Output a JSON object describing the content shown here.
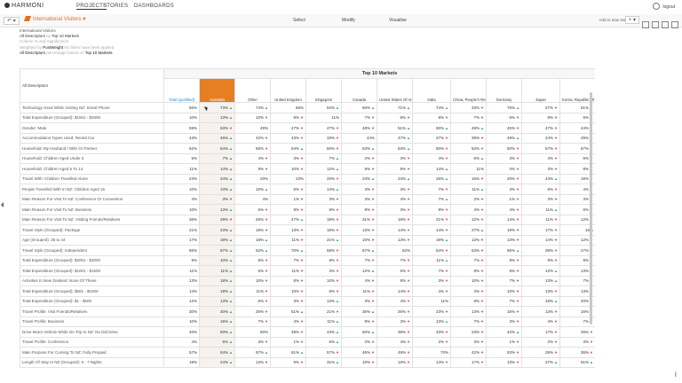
{
  "nav": {
    "logo": "HARMONI",
    "links": [
      "PROJECTS",
      "STORIES",
      "DASHBOARDS"
    ],
    "logout": "logout"
  },
  "toolbar": {
    "undo": "↶ ▾",
    "title": "International Visitors",
    "tabs": [
      "Select",
      "Modify",
      "Visualise"
    ],
    "add_to_story": "Add to new story",
    "plus": "+ ▾"
  },
  "info": {
    "line1": "International Visitors",
    "line2_a": "All Descriptors",
    "line2_by": "by",
    "line2_b": "Top 10 Markets",
    "line3": "Column % and Significance",
    "line4_a": "Weighted by",
    "line4_b": "PostWeight",
    "line4_c": "No filters have been applied",
    "line5_a": "All Descriptors",
    "line5_b": "percentage based on",
    "line5_c": "Top 10 Markets"
  },
  "table": {
    "group_header": "Top 10 Markets",
    "row_header": "All Descriptors",
    "columns": [
      "Total (qualified)",
      "Australia",
      "Other",
      "United Kingdom",
      "Singapore",
      "Canada",
      "United States Of America",
      "India",
      "China, People's Republic Of",
      "Germany",
      "Japan",
      "Korea, Republic Of"
    ],
    "rows": [
      {
        "label": "Technology Used While Visiting NZ: Smart Phone",
        "values": [
          "56%",
          "73% ▲",
          "74% ▲",
          "66%",
          "84% ▲",
          "66% ▲",
          "71% ▲",
          "74% ▲",
          "33% ▼",
          "76% ▲",
          "27% ▼",
          "51% ▼"
        ]
      },
      {
        "label": "Total Expenditure (Grouped): $1501 - $2000",
        "values": [
          "10%",
          "13% ▲",
          "10% ▼",
          "9% ▼",
          "11%",
          "7% ▼",
          "8% ▼",
          "8% ▼",
          "7% ▼",
          "6% ▼",
          "8% ▼",
          "6% ▼"
        ]
      },
      {
        "label": "Gender: Male",
        "values": [
          "59%",
          "53% ▼",
          "49%",
          "47% ▼",
          "47% ▼",
          "48% ▼",
          "51% ▲",
          "50% ▲",
          "48% ▲",
          "45% ▼",
          "47% ▼",
          "44% ▼"
        ]
      },
      {
        "label": "Accommodation Types Used: Rental Car",
        "values": [
          "43%",
          "46% ▲",
          "42% ▼",
          "43% ▼",
          "33% ▼",
          "44%",
          "47% ▲",
          "37% ▼",
          "39% ▼",
          "49% ▲",
          "24% ▼",
          "25% ▼"
        ]
      },
      {
        "label": "Household: My Husband / Wife Or Partner",
        "values": [
          "62%",
          "64% ▲",
          "56% ▼",
          "64% ▲",
          "60% ▼",
          "63% ▲",
          "63% ▲",
          "60% ▼",
          "52% ▼",
          "60% ▼",
          "57% ▼",
          "67% ▲"
        ]
      },
      {
        "label": "Household: Children Aged Under 5",
        "values": [
          "5%",
          "7% ▲",
          "4% ▼",
          "3% ▼",
          "7% ▲",
          "2% ▼",
          "3% ▼",
          "4% ▼",
          "6% ▲",
          "3% ▼",
          "4% ▼",
          "6% ▲"
        ]
      },
      {
        "label": "Household: Children Aged 5 To 14",
        "values": [
          "11%",
          "14% ▲",
          "8% ▼",
          "10% ▼",
          "12% ▲",
          "9% ▼",
          "8% ▼",
          "14% ▲",
          "11%",
          "4% ▼",
          "3% ▼",
          "8% ▼"
        ]
      },
      {
        "label": "Travel With: Children Travelled Alone",
        "values": [
          "23%",
          "34% ▲",
          "20%",
          "23%",
          "20% ▼",
          "23% ▲",
          "23% ▲",
          "26% ▲",
          "16% ▼",
          "20% ▼",
          "44% ▲",
          "16% ▼"
        ]
      },
      {
        "label": "People Travelled With In NZ: Children Aged 15",
        "values": [
          "10%",
          "13% ▲",
          "10% ▲",
          "6% ▼",
          "14% ▲",
          "3% ▼",
          "3% ▼",
          "7% ▼",
          "11% ▲",
          "3% ▼",
          "6% ▼",
          "4% ▼"
        ]
      },
      {
        "label": "Main Reason For Visit To NZ: Conference Or Convention",
        "values": [
          "4%",
          "3% ▼",
          "4%",
          "1% ▼",
          "3% ▼",
          "3% ▼",
          "4% ▼",
          "7% ▲",
          "2% ▼",
          "1% ▼",
          "3% ▼",
          "3% ▼"
        ]
      },
      {
        "label": "Main Reason For Visit To NZ: Business",
        "values": [
          "10%",
          "13% ▲",
          "6% ▼",
          "8% ▼",
          "8% ▼",
          "9% ▼",
          "3% ▼",
          "9% ▼",
          "4% ▼",
          "4% ▼",
          "11% ▲",
          "6% ▼"
        ]
      },
      {
        "label": "Main Reason For Visit To NZ: Visiting Friends/Relatives",
        "values": [
          "36%",
          "28% ▼",
          "26% ▼",
          "47% ▲",
          "18% ▼",
          "31% ▼",
          "18% ▼",
          "21% ▼",
          "12% ▼",
          "14% ▼",
          "11% ▼",
          "12% ▼"
        ]
      },
      {
        "label": "Travel Style (Grouped): Package",
        "values": [
          "21%",
          "23% ▲",
          "19% ▼",
          "13% ▼",
          "18% ▼",
          "13% ▼",
          "14% ▼",
          "14% ▼",
          "27% ▲",
          "19% ▼",
          "17% ▼",
          "16%"
        ]
      },
      {
        "label": "Age (Grouped): 35 to 44",
        "values": [
          "17%",
          "19% ▲",
          "18% ▲",
          "11% ▼",
          "21% ▲",
          "10% ▼",
          "13% ▼",
          "19% ▲",
          "12% ▼",
          "13% ▼",
          "14% ▼",
          "12% ▼"
        ]
      },
      {
        "label": "Travel Style (Grouped): Independent",
        "values": [
          "56%",
          "67% ▲",
          "62% ▲",
          "70% ▲",
          "58% ▼",
          "67% ▲",
          "62%",
          "54% ▼",
          "53% ▼",
          "66% ▲",
          "39% ▼",
          "27% ▼"
        ]
      },
      {
        "label": "Total Expenditure (Grouped): $2001 - $3000",
        "values": [
          "9%",
          "10% ▲",
          "8% ▼",
          "7% ▼",
          "8% ▼",
          "7% ▼",
          "7% ▼",
          "11% ▲",
          "7% ▼",
          "8% ▼",
          "9% ▼",
          "8% ▼"
        ]
      },
      {
        "label": "Total Expenditure (Grouped): $1001 - $1500",
        "values": [
          "11%",
          "11% ▲",
          "6% ▼",
          "11% ▼",
          "3% ▼",
          "12% ▲",
          "6% ▼",
          "7% ▼",
          "8% ▼",
          "8% ▼",
          "12% ▲",
          "13% ▲"
        ]
      },
      {
        "label": "Activities In New Zealand: None Of These",
        "values": [
          "13%",
          "18% ▲",
          "10% ▼",
          "8% ▼",
          "10% ▼",
          "4% ▼",
          "8% ▼",
          "3% ▼",
          "10% ▼",
          "7% ▼",
          "13% ▲",
          "7% ▼"
        ]
      },
      {
        "label": "Total Expenditure (Grouped): $501 - $1000",
        "values": [
          "14%",
          "19% ▲",
          "11% ▼",
          "10% ▼",
          "8% ▼",
          "11% ▼",
          "14% ▼",
          "4% ▼",
          "4% ▼",
          "10% ▼",
          "13% ▼",
          "13% ▼"
        ]
      },
      {
        "label": "Total Expenditure (Grouped): $1 - $500",
        "values": [
          "12%",
          "13% ▲",
          "6% ▼",
          "3% ▼",
          "13% ▲",
          "3% ▼",
          "4% ▼",
          "11%",
          "8% ▼",
          "7% ▼",
          "18% ▲",
          "20% ▲"
        ]
      },
      {
        "label": "Travel Profile: Visit Friends/Relatives",
        "values": [
          "30%",
          "40% ▲",
          "25% ▼",
          "51% ▲",
          "21% ▼",
          "36% ▲",
          "26% ▼",
          "23% ▼",
          "13% ▼",
          "16% ▼",
          "13% ▼",
          "16% ▼"
        ]
      },
      {
        "label": "Travel Profile: Business",
        "values": [
          "10%",
          "16% ▲",
          "7% ▼",
          "4% ▼",
          "11% ▲",
          "9% ▼",
          "3% ▼",
          "13% ▲",
          "7% ▼",
          "3% ▼",
          "4% ▼",
          "7% ▼"
        ]
      },
      {
        "label": "Drive Motor Vehicle While On Trip In NZ: No Did Drive",
        "values": [
          "40%",
          "60% ▲",
          "50%",
          "39% ▼",
          "43% ▲",
          "50% ▲",
          "38% ▼",
          "33% ▼",
          "23% ▼",
          "42% ▲",
          "17% ▼",
          "26% ▼"
        ]
      },
      {
        "label": "Travel Profile: Conference",
        "values": [
          "4%",
          "6% ▲",
          "3% ▼",
          "1% ▼",
          "6% ▲",
          "2% ▼",
          "4% ▼",
          "2% ▼",
          "3% ▼",
          "1% ▼",
          "2% ▼",
          "3% ▼"
        ]
      },
      {
        "label": "Main Purpose For Coming To NZ: Fully Prepaid",
        "values": [
          "57%",
          "64% ▲",
          "57% ▲",
          "61% ▲",
          "57% ▼",
          "46% ▼",
          "49% ▼",
          "70%",
          "42% ▼",
          "53% ▼",
          "28% ▼",
          "36% ▼"
        ]
      },
      {
        "label": "Length Of Stay In NZ (Grouped): 5 - 7 Nights",
        "values": [
          "19%",
          "24% ▲",
          "13% ▼",
          "9% ▼",
          "31% ▲",
          "10% ▼",
          "18% ▼",
          "14% ▼",
          "17% ▼",
          "13% ▼",
          "37% ▲",
          "51% ▲"
        ]
      }
    ]
  },
  "colors": {
    "accent": "#e67e22",
    "up": "#2ea84b",
    "down": "#d9342b",
    "total": "#1f8ad2"
  }
}
